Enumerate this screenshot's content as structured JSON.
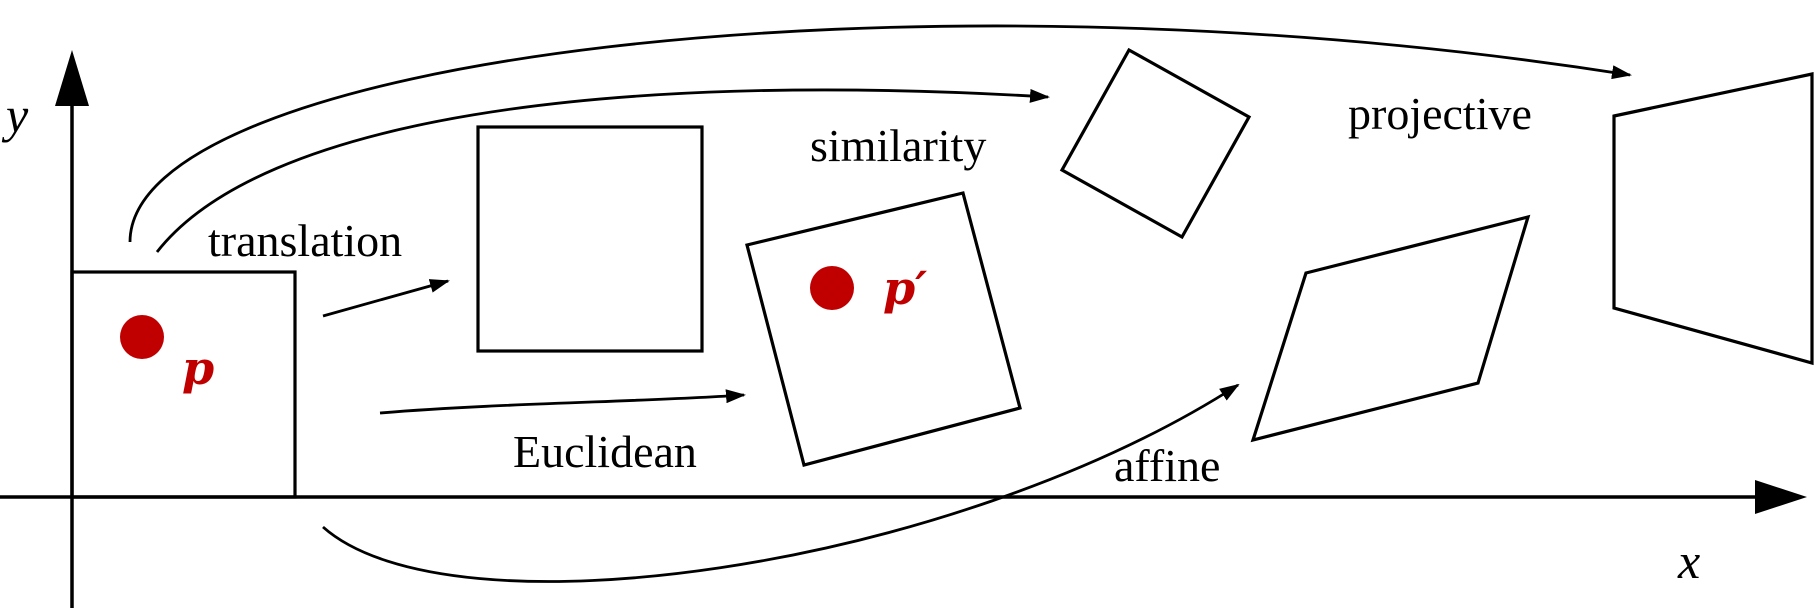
{
  "axes": {
    "x_label": "x",
    "y_label": "y"
  },
  "transforms": [
    {
      "key": "translation",
      "label": "translation"
    },
    {
      "key": "euclidean",
      "label": "Euclidean"
    },
    {
      "key": "similarity",
      "label": "similarity"
    },
    {
      "key": "affine",
      "label": "affine"
    },
    {
      "key": "projective",
      "label": "projective"
    }
  ],
  "points": {
    "original": "p",
    "transformed": "p′"
  },
  "colors": {
    "point": "#c00000",
    "ink": "#000000"
  }
}
